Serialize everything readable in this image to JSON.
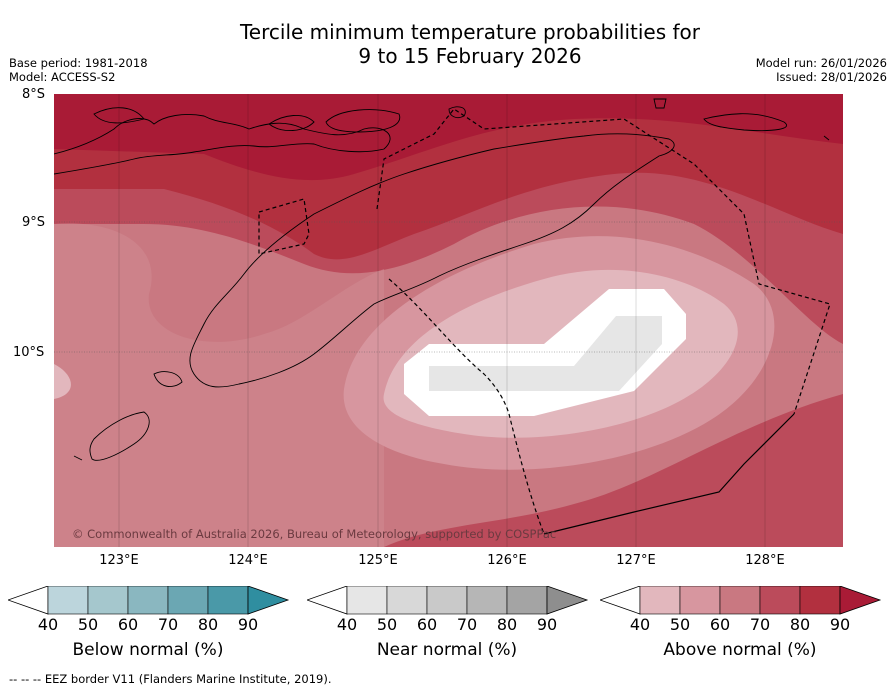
{
  "title": {
    "line1": "Tercile minimum temperature probabilities for",
    "line2": "9 to 15 February 2026"
  },
  "meta": {
    "base_period": "Base period: 1981-2018",
    "model": "Model: ACCESS-S2",
    "model_run": "Model run: 26/01/2026",
    "issued": "Issued: 28/01/2026"
  },
  "map": {
    "lat_labels": [
      "8°S",
      "9°S",
      "10°S"
    ],
    "lon_labels": [
      "123°E",
      "124°E",
      "125°E",
      "126°E",
      "127°E",
      "128°E"
    ],
    "copyright": "© Commonwealth of Australia 2026, Bureau of Meteorology, supported by COSPPac"
  },
  "colorbars": [
    {
      "title": "Below normal (%)",
      "ticks": [
        "40",
        "50",
        "60",
        "70",
        "80",
        "90"
      ],
      "colors": [
        "#bcd5dc",
        "#a5c7cd",
        "#8ab7c0",
        "#6ba7b3",
        "#4a99a8",
        "#2f8ea0"
      ]
    },
    {
      "title": "Near normal (%)",
      "ticks": [
        "40",
        "50",
        "60",
        "70",
        "80",
        "90"
      ],
      "colors": [
        "#e6e6e6",
        "#d8d8d8",
        "#c9c9c9",
        "#b6b6b6",
        "#a4a4a4",
        "#8e8e8e"
      ]
    },
    {
      "title": "Above normal (%)",
      "ticks": [
        "40",
        "50",
        "60",
        "70",
        "80",
        "90"
      ],
      "colors": [
        "#e2b7bd",
        "#d7969f",
        "#c97881",
        "#bb4b5b",
        "#b2303f",
        "#a91b36"
      ]
    }
  ],
  "footer": "-- -- -- EEZ border V11 (Flanders Marine Institute, 2019)."
}
